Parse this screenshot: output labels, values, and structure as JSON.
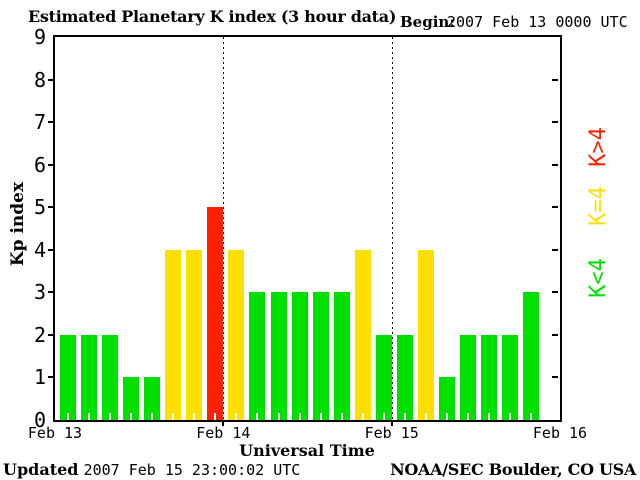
{
  "header": {
    "title": "Estimated Planetary K index (3 hour data)",
    "begin_label": "Begin:",
    "begin_value": "2007 Feb 13 0000 UTC"
  },
  "legend": [
    {
      "label": "K>4",
      "color": "#ff2100"
    },
    {
      "label": "K=4",
      "color": "#ffdf00"
    },
    {
      "label": "K<4",
      "color": "#00e000"
    }
  ],
  "footer": {
    "updated_label": "Updated",
    "updated_value": "2007 Feb 15 23:00:02 UTC",
    "credit": "NOAA/SEC Boulder, CO USA"
  },
  "chart_data": {
    "type": "bar",
    "title": "Estimated Planetary K index (3 hour data)",
    "xlabel": "Universal Time",
    "ylabel": "Kp index",
    "ylim": [
      0,
      9
    ],
    "y_ticks": [
      0,
      1,
      2,
      3,
      4,
      5,
      6,
      7,
      8,
      9
    ],
    "x_ticks": [
      "Feb 13",
      "Feb 14",
      "Feb 15",
      "Feb 16"
    ],
    "hours_per_bar": 3,
    "slots_per_day": 8,
    "days": 3,
    "values": [
      2,
      2,
      2,
      1,
      1,
      4,
      4,
      5,
      4,
      3,
      3,
      3,
      3,
      3,
      4,
      2,
      2,
      4,
      1,
      2,
      2,
      2,
      3
    ],
    "color_rules": {
      "below4": "#00e000",
      "equal4": "#ffdf00",
      "above4": "#ff2100"
    },
    "grid": "dotted vertical lines at day boundaries",
    "legend_position": "right, rotated 90deg"
  }
}
